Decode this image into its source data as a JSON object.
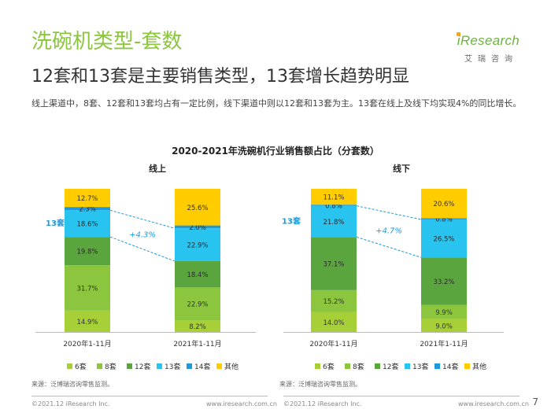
{
  "header": {
    "title": "洗碗机类型-套数",
    "headline": "12套和13套是主要销售类型，13套增长趋势明显",
    "description": "线上渠道中，8套、12套和13套均占有一定比例，线下渠道中则以12套和13套为主。13套在线上及线下均实现4%的同比增长。"
  },
  "logo": {
    "brand": "iResearch",
    "subtitle": "艾瑞咨询"
  },
  "chart_data": {
    "type": "bar",
    "stacked": true,
    "title": "2020-2021年洗碗机行业销售额占比（分套数）",
    "panels": [
      {
        "label": "线上",
        "categories": [
          "2020年1-11月",
          "2021年1-11月"
        ],
        "series": [
          {
            "name": "6套",
            "values": [
              14.9,
              8.2
            ]
          },
          {
            "name": "8套",
            "values": [
              31.7,
              22.9
            ]
          },
          {
            "name": "12套",
            "values": [
              19.8,
              18.4
            ]
          },
          {
            "name": "13套",
            "values": [
              18.6,
              22.9
            ]
          },
          {
            "name": "14套",
            "values": [
              2.3,
              2.0
            ]
          },
          {
            "name": "其他",
            "values": [
              12.7,
              25.6
            ]
          }
        ],
        "value_labels": [
          [
            "14.9%",
            "31.7%",
            "19.8%",
            "18.6%",
            "2.3%",
            "12.7%"
          ],
          [
            "8.2%",
            "22.9%",
            "18.4%",
            "22.9%",
            "2.0%",
            "25.6%"
          ]
        ],
        "highlight_label": "13套",
        "growth_label": "+4.3%"
      },
      {
        "label": "线下",
        "categories": [
          "2020年1-11月",
          "2021年1-11月"
        ],
        "series": [
          {
            "name": "6套",
            "values": [
              14.0,
              9.0
            ]
          },
          {
            "name": "8套",
            "values": [
              15.2,
              9.9
            ]
          },
          {
            "name": "12套",
            "values": [
              37.1,
              33.2
            ]
          },
          {
            "name": "13套",
            "values": [
              21.8,
              26.5
            ]
          },
          {
            "name": "14套",
            "values": [
              0.8,
              0.8
            ]
          },
          {
            "name": "其他",
            "values": [
              11.1,
              20.6
            ]
          }
        ],
        "value_labels": [
          [
            "14.0%",
            "15.2%",
            "37.1%",
            "21.8%",
            "0.8%",
            "11.1%"
          ],
          [
            "9.0%",
            "9.9%",
            "33.2%",
            "26.5%",
            "0.8%",
            "20.6%"
          ]
        ],
        "highlight_label": "13套",
        "growth_label": "+4.7%"
      }
    ],
    "colors": [
      "#A7CF38",
      "#8CC63F",
      "#5BA53F",
      "#28C3EE",
      "#1E9ADB",
      "#FFCC00"
    ],
    "ylim": [
      0,
      100
    ],
    "legend_position": "bottom",
    "source": "来源：泛博瑞咨询零售监测。"
  },
  "footer": {
    "copyright": "©2021.12 iResearch Inc.",
    "website": "www.iresearch.com.cn",
    "page": "7"
  }
}
